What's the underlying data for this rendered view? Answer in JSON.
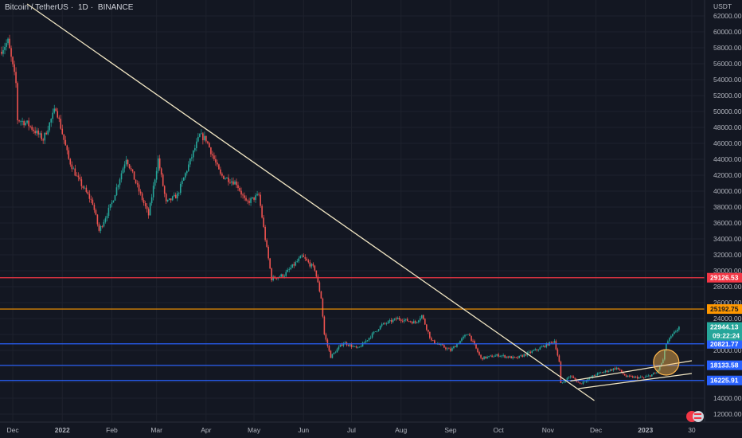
{
  "header": {
    "symbol": "Bitcoin / TetherUS",
    "interval": "1D",
    "exchange": "BINANCE",
    "currency": "USDT"
  },
  "colors": {
    "background": "#131722",
    "grid": "#1e222d",
    "up": "#26a69a",
    "down": "#ef5350",
    "trendline": "#f2e7c4",
    "red_level": "#f23645",
    "orange_level": "#ff9800",
    "blue_level": "#2962ff",
    "highlight_circle": "#ffb74d"
  },
  "chart_data": {
    "type": "candlestick",
    "y_axis": {
      "min": 11000,
      "max": 64000,
      "ticks": [
        "62000.00",
        "60000.00",
        "58000.00",
        "56000.00",
        "54000.00",
        "52000.00",
        "50000.00",
        "48000.00",
        "46000.00",
        "44000.00",
        "42000.00",
        "40000.00",
        "38000.00",
        "36000.00",
        "34000.00",
        "32000.00",
        "30000.00",
        "28000.00",
        "26000.00",
        "24000.00",
        "22000.00",
        "20000.00",
        "18000.00",
        "16000.00",
        "14000.00",
        "12000.00"
      ]
    },
    "x_axis": {
      "labels": [
        "Dec",
        "2022",
        "Feb",
        "Mar",
        "Apr",
        "May",
        "Jun",
        "Jul",
        "Aug",
        "Sep",
        "Oct",
        "Nov",
        "Dec",
        "2023",
        "30"
      ],
      "label_dates": [
        "2021-12-01",
        "2022-01-01",
        "2022-02-01",
        "2022-03-01",
        "2022-04-01",
        "2022-05-01",
        "2022-06-01",
        "2022-07-01",
        "2022-08-01",
        "2022-09-01",
        "2022-10-01",
        "2022-11-01",
        "2022-12-01",
        "2023-01-01",
        "2023-01-30"
      ]
    },
    "price_path": [
      [
        "2021-11-23",
        57500
      ],
      [
        "2021-11-28",
        58800
      ],
      [
        "2021-12-03",
        53500
      ],
      [
        "2021-12-04",
        49000
      ],
      [
        "2021-12-10",
        48500
      ],
      [
        "2021-12-20",
        46500
      ],
      [
        "2021-12-28",
        50500
      ],
      [
        "2022-01-05",
        44000
      ],
      [
        "2022-01-10",
        41800
      ],
      [
        "2022-01-20",
        38500
      ],
      [
        "2022-01-24",
        35000
      ],
      [
        "2022-02-01",
        38500
      ],
      [
        "2022-02-10",
        44200
      ],
      [
        "2022-02-18",
        40000
      ],
      [
        "2022-02-24",
        37000
      ],
      [
        "2022-03-02",
        44000
      ],
      [
        "2022-03-07",
        38500
      ],
      [
        "2022-03-14",
        39500
      ],
      [
        "2022-03-28",
        47000
      ],
      [
        "2022-04-01",
        46500
      ],
      [
        "2022-04-10",
        42000
      ],
      [
        "2022-04-20",
        41000
      ],
      [
        "2022-04-26",
        38500
      ],
      [
        "2022-05-04",
        39500
      ],
      [
        "2022-05-08",
        34000
      ],
      [
        "2022-05-12",
        29000
      ],
      [
        "2022-05-20",
        29500
      ],
      [
        "2022-05-31",
        31800
      ],
      [
        "2022-06-08",
        30200
      ],
      [
        "2022-06-12",
        26600
      ],
      [
        "2022-06-14",
        22000
      ],
      [
        "2022-06-18",
        19200
      ],
      [
        "2022-06-26",
        21000
      ],
      [
        "2022-07-05",
        20200
      ],
      [
        "2022-07-20",
        23200
      ],
      [
        "2022-07-30",
        24000
      ],
      [
        "2022-08-10",
        23500
      ],
      [
        "2022-08-14",
        24400
      ],
      [
        "2022-08-20",
        21200
      ],
      [
        "2022-09-01",
        20000
      ],
      [
        "2022-09-12",
        22200
      ],
      [
        "2022-09-20",
        19000
      ],
      [
        "2022-10-01",
        19400
      ],
      [
        "2022-10-12",
        19000
      ],
      [
        "2022-10-25",
        20100
      ],
      [
        "2022-11-05",
        21200
      ],
      [
        "2022-11-08",
        18500
      ],
      [
        "2022-11-09",
        15800
      ],
      [
        "2022-11-15",
        16800
      ],
      [
        "2022-11-21",
        15800
      ],
      [
        "2022-12-01",
        17000
      ],
      [
        "2022-12-14",
        17800
      ],
      [
        "2022-12-20",
        16700
      ],
      [
        "2022-12-31",
        16550
      ],
      [
        "2023-01-08",
        17200
      ],
      [
        "2023-01-12",
        18800
      ],
      [
        "2023-01-14",
        20900
      ],
      [
        "2023-01-21",
        22700
      ],
      [
        "2023-01-22",
        22944
      ]
    ],
    "horizontal_levels": [
      {
        "price": 29126.53,
        "label": "29126.53",
        "color": "#f23645"
      },
      {
        "price": 25192.75,
        "label": "25192.75",
        "color": "#ff9800"
      },
      {
        "price": 20821.77,
        "label": "20821.77",
        "color": "#2962ff"
      },
      {
        "price": 18133.58,
        "label": "18133.58",
        "color": "#2962ff"
      },
      {
        "price": 16225.91,
        "label": "16225.91",
        "color": "#2962ff"
      }
    ],
    "last_price": {
      "price": 22944.13,
      "label": "22944.13",
      "countdown": "09:22:24",
      "color": "#26a69a"
    },
    "trendlines": [
      {
        "from": [
          "2021-12-10",
          63500
        ],
        "to": [
          "2022-11-30",
          13700
        ],
        "color": "#f2e7c4"
      },
      {
        "from": [
          "2022-11-15",
          16150
        ],
        "to": [
          "2023-01-30",
          18700
        ],
        "color": "#f2e7c4"
      },
      {
        "from": [
          "2022-11-20",
          15200
        ],
        "to": [
          "2023-01-30",
          17100
        ],
        "color": "#f2e7c4"
      }
    ],
    "highlight_circle": {
      "date": "2023-01-14",
      "price": 18500
    }
  }
}
